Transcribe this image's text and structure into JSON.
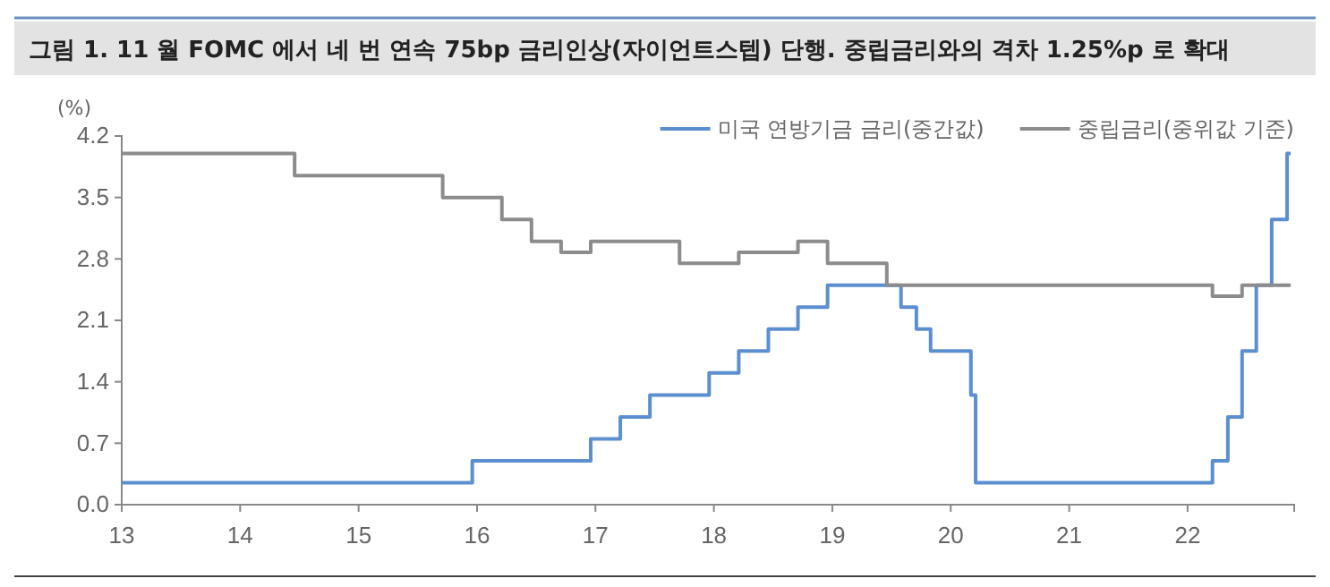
{
  "chart_data": {
    "type": "step",
    "title": "그림 1.  11 월 FOMC 에서 네 번 연속 75bp 금리인상(자이언트스텝) 단행. 중립금리와의 격차 1.25%p 로 확대",
    "ylabel": "(%)",
    "xlim": [
      13,
      22.9
    ],
    "xticks": [
      13,
      14,
      15,
      16,
      17,
      18,
      19,
      20,
      21,
      22
    ],
    "ylim": [
      0,
      4.2
    ],
    "yticks": [
      {
        "value": 0,
        "label": "0.0"
      },
      0.7,
      1.4,
      2.1,
      2.8,
      3.5,
      4.2
    ],
    "grid": false,
    "legend": "top right",
    "line_style": "solid",
    "series": [
      {
        "name": "미국 연방기금 금리(중간값)",
        "color": "#5b8fd0",
        "x": [
          13,
          15.96,
          16.96,
          17.21,
          17.46,
          17.96,
          18.21,
          18.46,
          18.71,
          18.96,
          19.58,
          19.71,
          19.83,
          20.17,
          20.21,
          22.21,
          22.34,
          22.46,
          22.58,
          22.71,
          22.84,
          22.87
        ],
        "values": [
          0.25,
          0.5,
          0.75,
          1.0,
          1.25,
          1.5,
          1.75,
          2.0,
          2.25,
          2.5,
          2.25,
          2.0,
          1.75,
          1.25,
          0.25,
          0.5,
          1.0,
          1.75,
          2.5,
          3.25,
          4.0,
          4.0
        ]
      },
      {
        "name": "중립금리(중위값 기준)",
        "color": "#8c8c8c",
        "x": [
          13,
          14.46,
          15.71,
          16.21,
          16.46,
          16.71,
          16.96,
          17.71,
          18.21,
          18.71,
          18.96,
          19.46,
          22.21,
          22.46,
          22.87
        ],
        "values": [
          4.0,
          3.75,
          3.5,
          3.25,
          3.0,
          2.875,
          3.0,
          2.75,
          2.875,
          3.0,
          2.75,
          2.5,
          2.375,
          2.5,
          2.5
        ]
      }
    ]
  }
}
